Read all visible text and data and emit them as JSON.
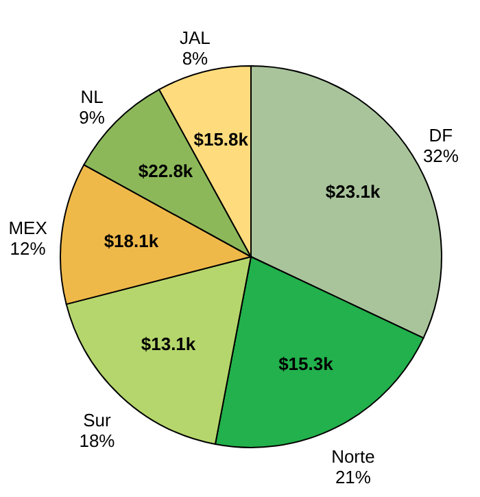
{
  "chart_data": {
    "type": "pie",
    "categories": [
      "DF",
      "Norte",
      "Sur",
      "MEX",
      "NL",
      "JAL"
    ],
    "values": [
      32,
      21,
      18,
      12,
      9,
      8
    ],
    "colors": [
      "#a9c49b",
      "#22b14c",
      "#b5d66c",
      "#efb94a",
      "#8cb85a",
      "#fedc7d"
    ],
    "value_labels": [
      "32%",
      "21%",
      "18%",
      "12%",
      "9%",
      "8%"
    ],
    "annotations": [
      {
        "text": "$23.1k",
        "x": "DF"
      },
      {
        "text": "$15.3k",
        "x": "Norte"
      },
      {
        "text": "$13.1k",
        "x": "Sur"
      },
      {
        "text": "$18.1k",
        "x": "MEX"
      },
      {
        "text": "$22.8k",
        "x": "NL"
      },
      {
        "text": "$15.8k",
        "x": "JAL"
      }
    ]
  }
}
